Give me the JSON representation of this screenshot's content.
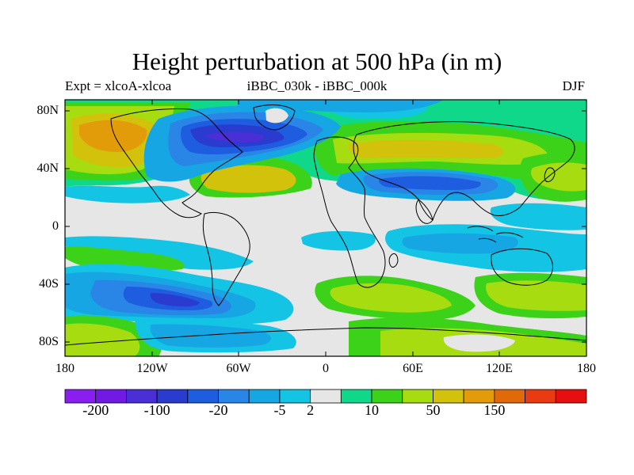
{
  "title": "Height perturbation at 500 hPa (in m)",
  "subtitle_left": "Expt = xlcoA-xlcoa",
  "subtitle_center": "iBBC_030k - iBBC_000k",
  "subtitle_right": "DJF",
  "lat_labels": [
    "80N",
    "40N",
    "0",
    "40S",
    "80S"
  ],
  "lon_labels": [
    "180",
    "120W",
    "60W",
    "0",
    "60E",
    "120E",
    "180"
  ],
  "colorbar": {
    "colors": [
      "#8a1ef0",
      "#7219e6",
      "#4a2ed6",
      "#2a3bd0",
      "#1e5ce0",
      "#2a86e6",
      "#17a6e4",
      "#13c4e4",
      "#e6e6e6",
      "#10d88a",
      "#3cd21a",
      "#a6dc10",
      "#d2c20c",
      "#e29c0a",
      "#e06a0a",
      "#ea3a12",
      "#e60e0e"
    ],
    "labels": [
      "-200",
      "-100",
      "-20",
      "-5",
      "2",
      "10",
      "50",
      "150"
    ],
    "label_after_box": [
      1,
      3,
      5,
      7,
      8,
      10,
      12,
      14
    ]
  },
  "map": {
    "colors": {
      "neutral": "#e6e6e6",
      "cyan": "#13c4e4",
      "light_blue": "#17a6e4",
      "mid_blue": "#2a86e6",
      "blue": "#1e5ce0",
      "deep_blue": "#2a3bd0",
      "purple_blue": "#4a2ed6",
      "teal": "#10d88a",
      "green": "#3cd21a",
      "yellow_green": "#a6dc10",
      "gold": "#d2c20c",
      "orange": "#e29c0a"
    }
  }
}
